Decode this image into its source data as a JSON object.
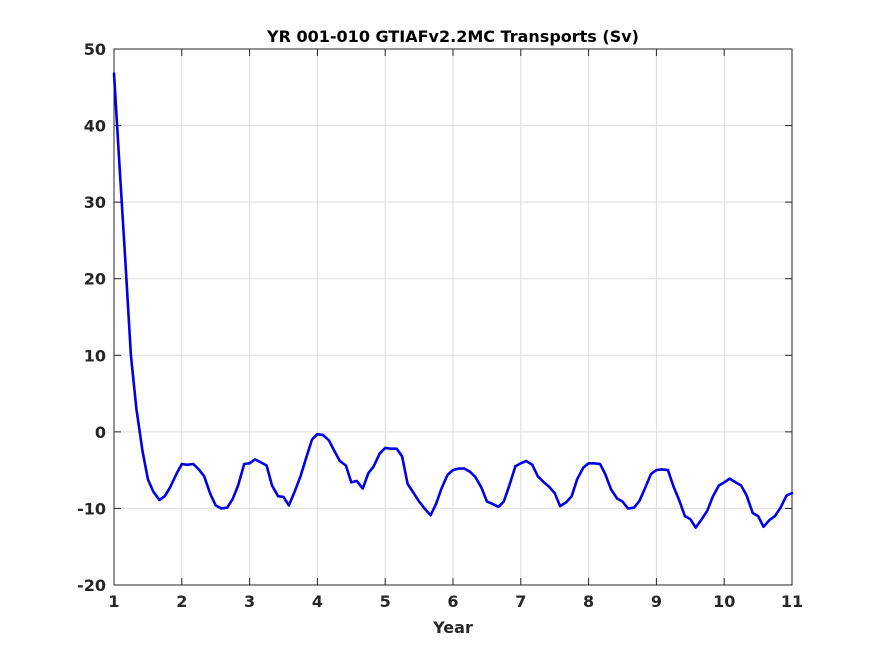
{
  "chart_data": {
    "type": "line",
    "title": "YR 001-010 GTIAFv2.2MC Transports (Sv)",
    "xlabel": "Year",
    "ylabel": "",
    "xlim": [
      1,
      11
    ],
    "ylim": [
      -20,
      50
    ],
    "xticks": [
      1,
      2,
      3,
      4,
      5,
      6,
      7,
      8,
      9,
      10,
      11
    ],
    "yticks": [
      -20,
      -10,
      0,
      10,
      20,
      30,
      40,
      50
    ],
    "grid": true,
    "colors": {
      "line": "#0000e6",
      "grid": "#dcdcdc",
      "axis": "#262626"
    },
    "series": [
      {
        "name": "",
        "x": [
          1.0,
          1.08,
          1.17,
          1.25,
          1.33,
          1.42,
          1.5,
          1.58,
          1.67,
          1.75,
          1.83,
          1.92,
          2.0,
          2.08,
          2.17,
          2.25,
          2.33,
          2.42,
          2.5,
          2.58,
          2.67,
          2.75,
          2.83,
          2.92,
          3.0,
          3.08,
          3.17,
          3.25,
          3.33,
          3.42,
          3.5,
          3.58,
          3.67,
          3.75,
          3.83,
          3.92,
          4.0,
          4.08,
          4.17,
          4.25,
          4.33,
          4.42,
          4.5,
          4.58,
          4.67,
          4.75,
          4.83,
          4.92,
          5.0,
          5.08,
          5.17,
          5.25,
          5.33,
          5.42,
          5.5,
          5.58,
          5.67,
          5.75,
          5.83,
          5.92,
          6.0,
          6.08,
          6.17,
          6.25,
          6.33,
          6.42,
          6.5,
          6.58,
          6.67,
          6.75,
          6.83,
          6.92,
          7.0,
          7.08,
          7.17,
          7.25,
          7.33,
          7.42,
          7.5,
          7.58,
          7.67,
          7.75,
          7.83,
          7.92,
          8.0,
          8.08,
          8.17,
          8.25,
          8.33,
          8.42,
          8.5,
          8.58,
          8.67,
          8.75,
          8.83,
          8.92,
          9.0,
          9.08,
          9.17,
          9.25,
          9.33,
          9.42,
          9.5,
          9.58,
          9.67,
          9.75,
          9.83,
          9.92,
          10.0,
          10.08,
          10.17,
          10.25,
          10.33,
          10.42,
          10.5,
          10.58,
          10.67,
          10.75,
          10.83,
          10.92,
          11.0
        ],
        "y": [
          46.8,
          35.0,
          22.0,
          10.0,
          3.0,
          -2.5,
          -6.2,
          -7.8,
          -8.9,
          -8.4,
          -7.2,
          -5.5,
          -4.2,
          -4.3,
          -4.2,
          -4.9,
          -5.8,
          -8.1,
          -9.6,
          -10.0,
          -9.9,
          -8.8,
          -7.0,
          -4.2,
          -4.1,
          -3.6,
          -4.0,
          -4.4,
          -7.0,
          -8.4,
          -8.5,
          -9.6,
          -7.7,
          -5.8,
          -3.5,
          -1.0,
          -0.3,
          -0.4,
          -1.1,
          -2.5,
          -3.8,
          -4.4,
          -6.6,
          -6.4,
          -7.4,
          -5.4,
          -4.5,
          -2.8,
          -2.1,
          -2.2,
          -2.2,
          -3.2,
          -6.8,
          -8.0,
          -9.1,
          -10.0,
          -10.9,
          -9.4,
          -7.4,
          -5.6,
          -5.0,
          -4.8,
          -4.8,
          -5.2,
          -5.9,
          -7.3,
          -9.1,
          -9.4,
          -9.8,
          -9.1,
          -7.0,
          -4.5,
          -4.1,
          -3.8,
          -4.3,
          -5.8,
          -6.5,
          -7.2,
          -8.0,
          -9.7,
          -9.2,
          -8.4,
          -6.2,
          -4.7,
          -4.1,
          -4.1,
          -4.2,
          -5.6,
          -7.5,
          -8.7,
          -9.1,
          -10.0,
          -9.9,
          -9.0,
          -7.4,
          -5.5,
          -5.0,
          -4.9,
          -5.0,
          -7.1,
          -8.8,
          -11.0,
          -11.4,
          -12.5,
          -11.4,
          -10.3,
          -8.5,
          -7.0,
          -6.6,
          -6.1,
          -6.6,
          -7.0,
          -8.3,
          -10.6,
          -11.0,
          -12.4,
          -11.5,
          -11.0,
          -9.9,
          -8.3,
          -8.0
        ]
      }
    ]
  }
}
